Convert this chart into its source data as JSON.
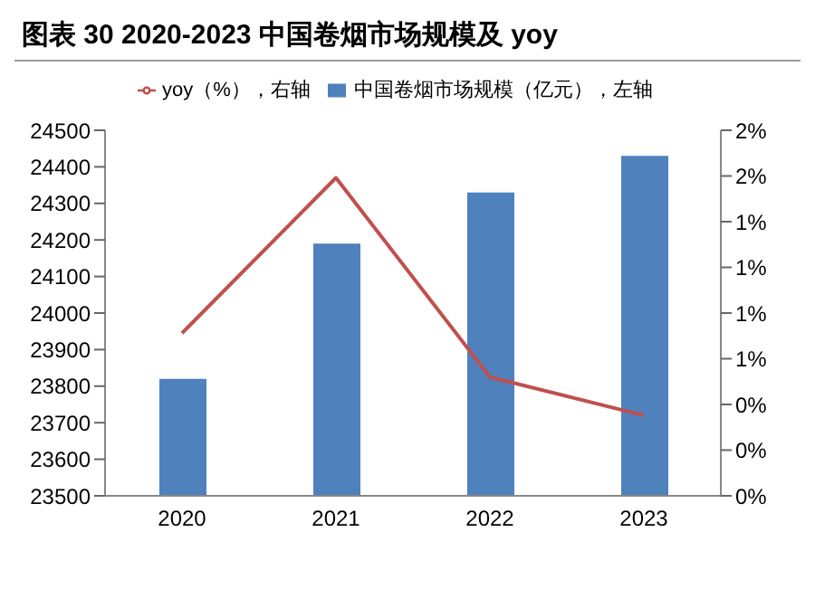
{
  "chart_data": {
    "type": "bar",
    "title": "图表 30 2020-2023 中国卷烟市场规模及 yoy",
    "categories": [
      "2020",
      "2021",
      "2022",
      "2023"
    ],
    "series": [
      {
        "name": "中国卷烟市场规模（亿元），左轴",
        "color": "#4f81bd",
        "values": [
          23820,
          24190,
          24330,
          24430
        ]
      },
      {
        "name": "yoy（%），右轴",
        "type": "line",
        "axis": "y2",
        "color": "#c0504d",
        "values": [
          0.89,
          1.74,
          0.65,
          0.44
        ]
      }
    ],
    "ylim": [
      23500,
      24500
    ],
    "yticks": [
      23500,
      23600,
      23700,
      23800,
      23900,
      24000,
      24100,
      24200,
      24300,
      24400,
      24500
    ],
    "y2lim": [
      0,
      2
    ],
    "y2ticks": [
      {
        "value": 0,
        "label": "0%"
      },
      {
        "value": 0.25,
        "label": "0%"
      },
      {
        "value": 0.5,
        "label": "0%"
      },
      {
        "value": 0.75,
        "label": "1%"
      },
      {
        "value": 1,
        "label": "1%"
      },
      {
        "value": 1.25,
        "label": "1%"
      },
      {
        "value": 1.5,
        "label": "1%"
      },
      {
        "value": 1.75,
        "label": "2%"
      },
      {
        "value": 2,
        "label": "2%"
      }
    ],
    "legend": "top",
    "grid": false,
    "marker": "none"
  }
}
